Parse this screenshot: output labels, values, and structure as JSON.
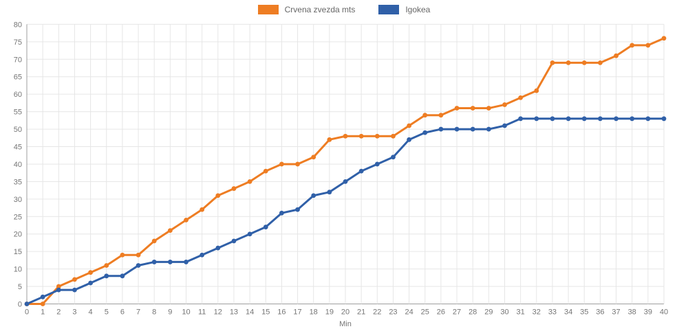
{
  "chart_data": {
    "type": "line",
    "title": "",
    "xlabel": "Min",
    "ylabel": "",
    "x": [
      0,
      1,
      2,
      3,
      4,
      5,
      6,
      7,
      8,
      9,
      10,
      11,
      12,
      13,
      14,
      15,
      16,
      17,
      18,
      19,
      20,
      21,
      22,
      23,
      24,
      25,
      26,
      27,
      28,
      29,
      30,
      31,
      32,
      33,
      34,
      35,
      36,
      37,
      38,
      39,
      40
    ],
    "series": [
      {
        "name": "Crvena zvezda mts",
        "color": "#ee7d23",
        "values": [
          0,
          0,
          5,
          7,
          9,
          11,
          14,
          14,
          18,
          21,
          24,
          27,
          31,
          33,
          35,
          38,
          40,
          40,
          42,
          47,
          48,
          48,
          48,
          48,
          51,
          54,
          54,
          56,
          56,
          56,
          57,
          59,
          61,
          69,
          69,
          69,
          69,
          71,
          74,
          74,
          76
        ]
      },
      {
        "name": "Igokea",
        "color": "#3060a8",
        "values": [
          0,
          2,
          4,
          4,
          6,
          8,
          8,
          11,
          12,
          12,
          12,
          14,
          16,
          18,
          20,
          22,
          26,
          27,
          31,
          32,
          35,
          38,
          40,
          42,
          47,
          49,
          50,
          50,
          50,
          50,
          51,
          53,
          53,
          53,
          53,
          53,
          53,
          53,
          53,
          53,
          53
        ]
      }
    ],
    "xlim": [
      0,
      40
    ],
    "ylim": [
      0,
      80
    ],
    "yticks": [
      0,
      5,
      10,
      15,
      20,
      25,
      30,
      35,
      40,
      45,
      50,
      55,
      60,
      65,
      70,
      75,
      80
    ],
    "grid": true,
    "legend_position": "top"
  },
  "style": {
    "grid_color": "#e6e6e6",
    "axis_line_color": "#9e9e9e",
    "tick_label_color": "#757575"
  }
}
